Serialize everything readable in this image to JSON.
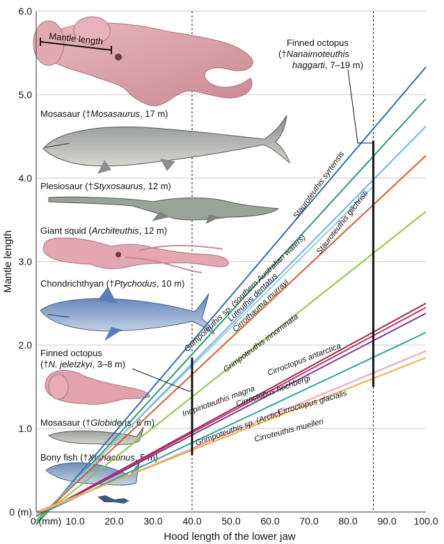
{
  "chart_data": {
    "type": "line",
    "xlabel": "Hood length of the lower jaw",
    "ylabel": "Mantle length",
    "xlim": [
      0,
      100
    ],
    "ylim": [
      0,
      6
    ],
    "grid": true,
    "x_ticks": [
      {
        "v": 0,
        "label": "0 (mm)"
      },
      {
        "v": 10,
        "label": "10.0"
      },
      {
        "v": 20,
        "label": "20.0"
      },
      {
        "v": 30,
        "label": "30.0"
      },
      {
        "v": 40,
        "label": "40.0"
      },
      {
        "v": 50,
        "label": "50.0"
      },
      {
        "v": 60,
        "label": "60.0"
      },
      {
        "v": 70,
        "label": "70.0"
      },
      {
        "v": 80,
        "label": "80.0"
      },
      {
        "v": 90,
        "label": "90.0"
      },
      {
        "v": 100,
        "label": "100.0"
      }
    ],
    "y_ticks": [
      {
        "v": 0,
        "label": "0 (m)"
      },
      {
        "v": 1,
        "label": "1.0"
      },
      {
        "v": 2,
        "label": "2.0"
      },
      {
        "v": 3,
        "label": "3.0"
      },
      {
        "v": 4,
        "label": "4.0"
      },
      {
        "v": 5,
        "label": "5.0"
      },
      {
        "v": 6,
        "label": "6.0"
      }
    ],
    "series": [
      {
        "name": "Stauroteuthis syrtensis",
        "color": "#2f6fa8",
        "x": [
          0,
          100
        ],
        "y": [
          -0.15,
          5.33
        ]
      },
      {
        "name": "Grimpoteuthis sp. (southern Australian waters)",
        "color": "#2a9a6e",
        "x": [
          0,
          100
        ],
        "y": [
          -0.15,
          4.95
        ]
      },
      {
        "name": "Luteuthis dentatus",
        "color": "#6cb4e0",
        "x": [
          0,
          100
        ],
        "y": [
          -0.12,
          4.62
        ]
      },
      {
        "name": "Stauroteuthis gilchristi",
        "color": "#9ac9e6",
        "x": [
          0,
          86.5
        ],
        "y": [
          -0.1,
          3.9
        ]
      },
      {
        "name": "Cirrothauma murrayi",
        "color": "#d85a2a",
        "x": [
          0,
          100
        ],
        "y": [
          -0.1,
          4.27
        ]
      },
      {
        "name": "Grimpoteuthis innominata",
        "color": "#8cc63f",
        "x": [
          0,
          100
        ],
        "y": [
          -0.1,
          3.6
        ]
      },
      {
        "name": "Cirroctopus antarctica",
        "color": "#9a2a4a",
        "x": [
          0,
          100
        ],
        "y": [
          -0.05,
          2.5
        ]
      },
      {
        "name": "Inopinoteuthis magna",
        "color": "#c0306a",
        "x": [
          0,
          100
        ],
        "y": [
          -0.05,
          2.45
        ]
      },
      {
        "name": "Cirroctopus hochbergi",
        "color": "#7a3a8a",
        "x": [
          0,
          100
        ],
        "y": [
          -0.05,
          2.38
        ]
      },
      {
        "name": "Grimpoteuthis sp. (Arctic)",
        "color": "#26a69a",
        "x": [
          0,
          100
        ],
        "y": [
          -0.05,
          2.15
        ]
      },
      {
        "name": "Cirroctopus glacialis",
        "color": "#f0a0b8",
        "x": [
          0,
          100
        ],
        "y": [
          -0.02,
          1.93
        ]
      },
      {
        "name": "Cirroteuthis muelleri",
        "color": "#f0b030",
        "x": [
          0,
          100
        ],
        "y": [
          0,
          1.85
        ]
      }
    ],
    "series_labels": [
      {
        "text": "Stauroteuthis syrtensis",
        "x": 73,
        "y": 3.9,
        "rot": -54
      },
      {
        "text": "Stauroteuthis gilchristi",
        "x": 79,
        "y": 3.45,
        "rot": -52
      },
      {
        "text": "Grimpoteuthis sp. (southern Australian waters)",
        "x": 54,
        "y": 2.6,
        "rot": -44
      },
      {
        "text": "Luteuthis dentatus",
        "x": 56,
        "y": 2.55,
        "rot": -44
      },
      {
        "text": "Cirrothauma murrayi",
        "x": 58,
        "y": 2.45,
        "rot": -43
      },
      {
        "text": "Grimpoteuthis innominata",
        "x": 58,
        "y": 2.0,
        "rot": -37
      },
      {
        "text": "Cirroctopus antarctica",
        "x": 69,
        "y": 1.8,
        "rot": -21
      },
      {
        "text": "Inopinoteuthis magna",
        "x": 47,
        "y": 1.3,
        "rot": -20
      },
      {
        "text": "Cirroctopus hochbergi",
        "x": 61,
        "y": 1.42,
        "rot": -20
      },
      {
        "text": "Grimpoteuthis sp. (Arctic)",
        "x": 52,
        "y": 0.98,
        "rot": -20
      },
      {
        "text": "Cirroctopus glacialis",
        "x": 71,
        "y": 1.28,
        "rot": -16
      },
      {
        "text": "Cirroteuthis muelleri",
        "x": 65,
        "y": 0.95,
        "rot": -15
      }
    ],
    "estimates": [
      {
        "label_parts": [
          "Finned octopus",
          "(†",
          "Nanaimoteuthis",
          "haggarti",
          ", 7–19 m)"
        ],
        "x": 86.5,
        "y_range": [
          1.5,
          4.45
        ]
      },
      {
        "label_parts": [
          "Finned octopus",
          "(†",
          "N. jeletzkyi",
          ", 3–8 m)"
        ],
        "x": 40,
        "y_range": [
          0.68,
          1.85
        ]
      }
    ],
    "reference_lines_x": [
      40,
      86.5
    ],
    "animal_labels": [
      {
        "name": "Mosasaur",
        "parts": [
          "Mosasaur (†",
          "Mosasaurus",
          ", 17 m)"
        ]
      },
      {
        "name": "Plesiosaur",
        "parts": [
          "Plesiosaur (†",
          "Styxosaurus",
          ", 12 m)"
        ]
      },
      {
        "name": "Giant squid",
        "parts": [
          "Giant squid (",
          "Architeuthis",
          ", 12 m)"
        ]
      },
      {
        "name": "Chondrichthyan",
        "parts": [
          "Chondrichthyan (†",
          "Ptychodus",
          ", 10 m)"
        ]
      },
      {
        "name": "Mosasaur2",
        "parts": [
          "Mosasaur (†",
          "Globidens",
          ", 6 m)"
        ]
      },
      {
        "name": "Bony fish",
        "parts": [
          "Bony fish (†",
          "Xiphactinus",
          ", 5 m)"
        ]
      }
    ],
    "mantle_label": "Mantle length"
  }
}
